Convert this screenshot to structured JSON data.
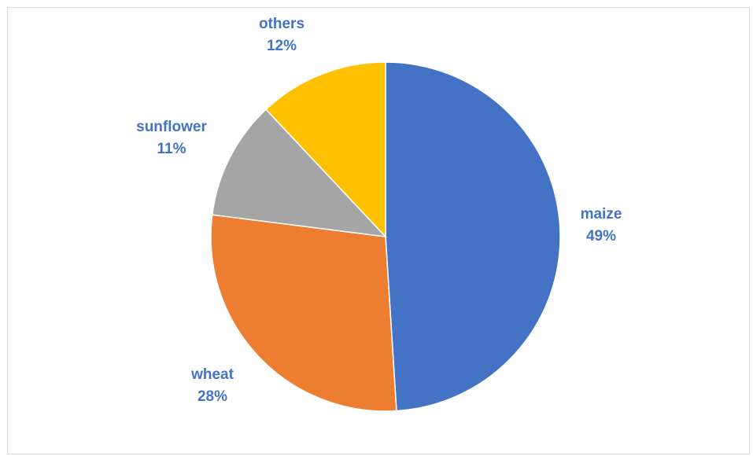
{
  "chart_data": {
    "type": "pie",
    "title": "",
    "slices": [
      {
        "label": "maize",
        "value": 49,
        "pct_text": "49%",
        "color": "#4472c4"
      },
      {
        "label": "wheat",
        "value": 28,
        "pct_text": "28%",
        "color": "#ed7d31"
      },
      {
        "label": "sunflower",
        "value": 11,
        "pct_text": "11%",
        "color": "#a5a5a5"
      },
      {
        "label": "others",
        "value": 12,
        "pct_text": "12%",
        "color": "#ffc000"
      }
    ],
    "label_color": "#4472c4",
    "legend": "none",
    "start": "12 o'clock",
    "direction": "clockwise"
  }
}
